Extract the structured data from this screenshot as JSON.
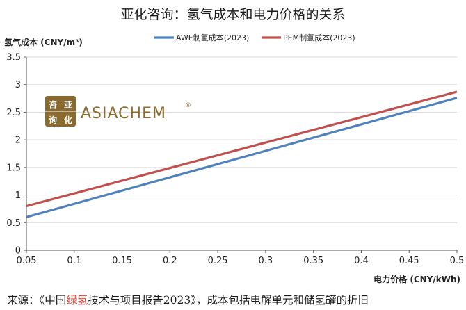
{
  "chart_data": {
    "type": "line",
    "title": "亚化咨询：氢气成本和电力价格的关系",
    "ylabel": "氢气成本 (CNY/m³)",
    "xlabel": "电力价格 (CNY/kWh)",
    "xlim": [
      0.05,
      0.5
    ],
    "ylim": [
      0,
      3.5
    ],
    "x_ticks": [
      "0.05",
      "0.1",
      "0.15",
      "0.2",
      "0.25",
      "0.3",
      "0.35",
      "0.4",
      "0.45",
      "0.5"
    ],
    "y_ticks": [
      "0",
      "0.5",
      "1",
      "1.5",
      "2",
      "2.5",
      "3",
      "3.5"
    ],
    "legend_position": "top",
    "grid": "horizontal",
    "series": [
      {
        "name": "AWE制氢成本(2023)",
        "color": "#4f81bd",
        "x": [
          0.05,
          0.5
        ],
        "y": [
          0.6,
          2.76
        ]
      },
      {
        "name": "PEM制氢成本(2023)",
        "color": "#c0504d",
        "x": [
          0.05,
          0.5
        ],
        "y": [
          0.8,
          2.87
        ]
      }
    ]
  },
  "logo": {
    "text": "ASIACHEM",
    "reg": "®",
    "cn_chars": [
      "咨",
      "亚",
      "询",
      "化"
    ]
  },
  "source": {
    "prefix": "来源：《中国",
    "highlight": "绿氢",
    "suffix": "技术与项目报告2023》，成本包括电解单元和储氢罐的折旧"
  }
}
